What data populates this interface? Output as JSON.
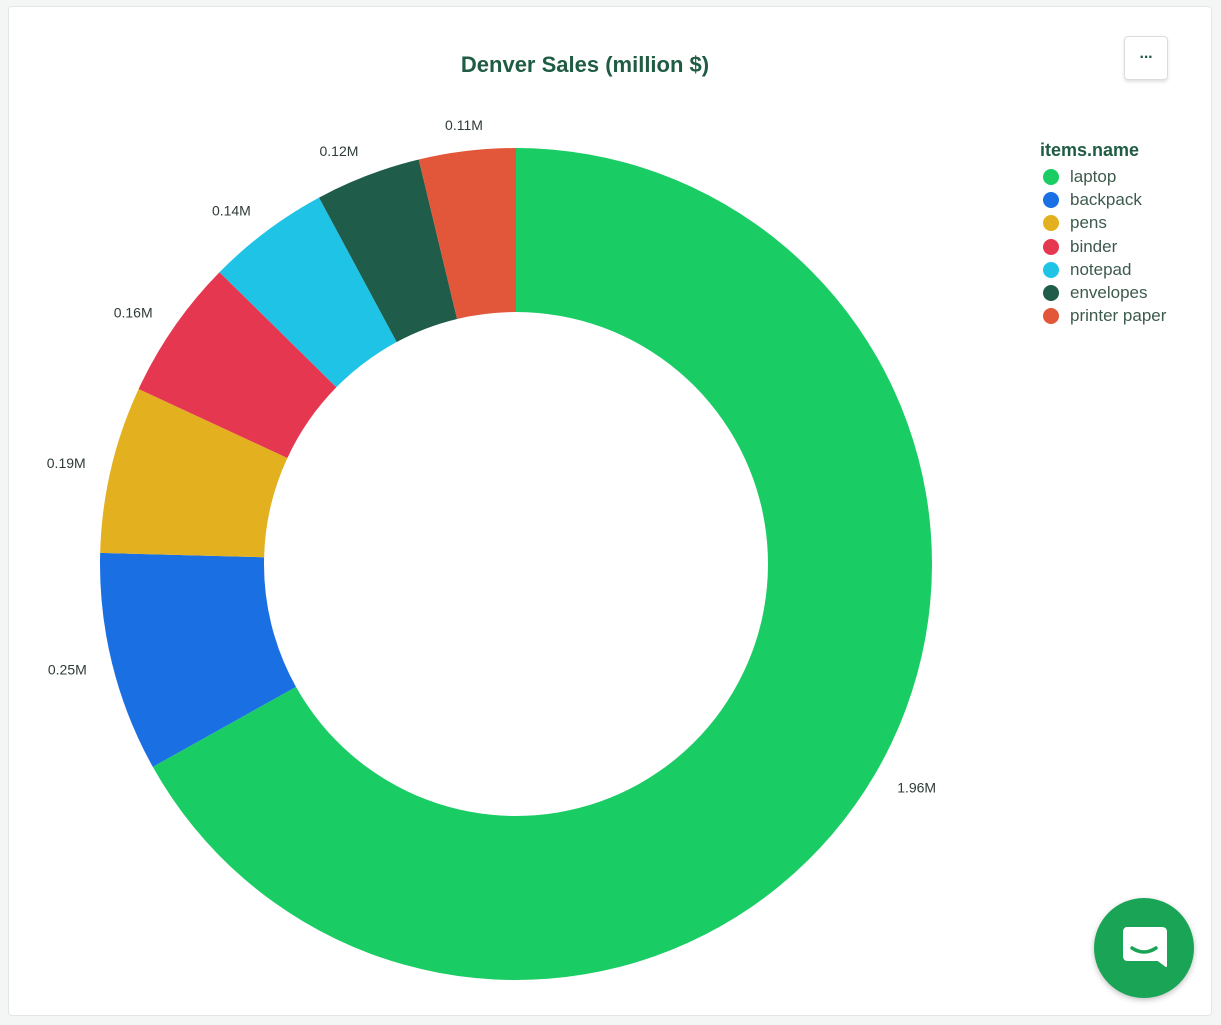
{
  "title": "Denver Sales (million $)",
  "menu_label": "···",
  "legend": {
    "title": "items.name",
    "items": [
      {
        "label": "laptop",
        "color": "#19cc64"
      },
      {
        "label": "backpack",
        "color": "#1a6fe3"
      },
      {
        "label": "pens",
        "color": "#e3b120"
      },
      {
        "label": "binder",
        "color": "#e53750"
      },
      {
        "label": "notepad",
        "color": "#1ec3e6"
      },
      {
        "label": "envelopes",
        "color": "#1f5c4a"
      },
      {
        "label": "printer paper",
        "color": "#e2573a"
      }
    ]
  },
  "chart_data": {
    "type": "pie",
    "variant": "donut",
    "title": "Denver Sales (million $)",
    "legend_title": "items.name",
    "legend_position": "top-right",
    "categories": [
      "laptop",
      "backpack",
      "pens",
      "binder",
      "notepad",
      "envelopes",
      "printer paper"
    ],
    "values": [
      1.96,
      0.25,
      0.19,
      0.16,
      0.14,
      0.12,
      0.11
    ],
    "value_labels": [
      "1.96M",
      "0.25M",
      "0.19M",
      "0.16M",
      "0.14M",
      "0.12M",
      "0.11M"
    ],
    "colors": [
      "#19cc64",
      "#1a6fe3",
      "#e3b120",
      "#e53750",
      "#1ec3e6",
      "#1f5c4a",
      "#e2573a"
    ]
  },
  "chat_icon": "chat-bubble-icon"
}
